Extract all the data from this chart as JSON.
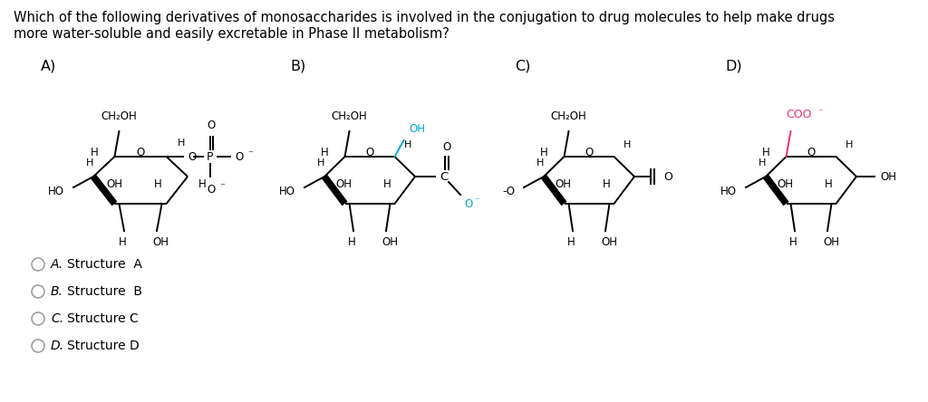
{
  "question_line1": "Which of the following derivatives of monosaccharides is involved in the conjugation to drug molecules to help make drugs",
  "question_line2": "more water-soluble and easily excretable in Phase II metabolism?",
  "question_fontsize": 10.5,
  "options": [
    {
      "label": "A.",
      "text": "Structure  A"
    },
    {
      "label": "B.",
      "text": "Structure  B"
    },
    {
      "label": "C.",
      "text": "Structure C"
    },
    {
      "label": "D.",
      "text": "Structure D"
    }
  ],
  "section_labels": [
    "A)",
    "B)",
    "C)",
    "D)"
  ],
  "bg_color": "#ffffff",
  "text_color": "#000000",
  "coo_color": "#e8336d",
  "oh_color": "#00aacc"
}
